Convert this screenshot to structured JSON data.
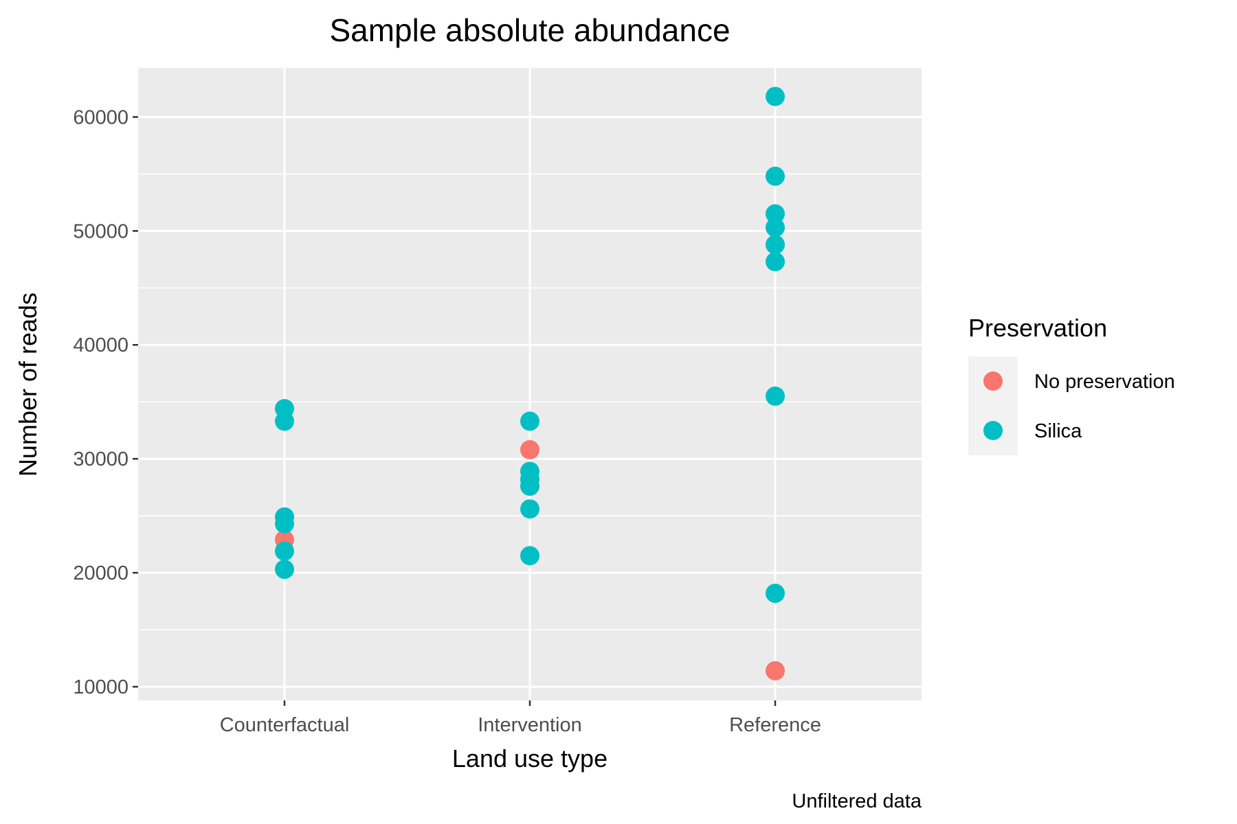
{
  "chart_data": {
    "type": "scatter",
    "title": "Sample absolute abundance",
    "xlabel": "Land use type",
    "ylabel": "Number of reads",
    "caption": "Unfiltered data",
    "categories": [
      "Counterfactual",
      "Intervention",
      "Reference"
    ],
    "ylim": [
      8800,
      64300
    ],
    "yticks": [
      10000,
      20000,
      30000,
      40000,
      50000,
      60000
    ],
    "yticklabels": [
      "10000",
      "20000",
      "30000",
      "40000",
      "50000",
      "60000"
    ],
    "grid": true,
    "legend": {
      "title": "Preservation",
      "placement": "right",
      "entries": [
        {
          "label": "No preservation",
          "color": "#F8766D"
        },
        {
          "label": "Silica",
          "color": "#00BFC4"
        }
      ]
    },
    "series": [
      {
        "name": "No preservation",
        "color": "#F8766D",
        "points": [
          {
            "x": "Counterfactual",
            "y": 22900
          },
          {
            "x": "Intervention",
            "y": 30800
          },
          {
            "x": "Reference",
            "y": 11400
          }
        ]
      },
      {
        "name": "Silica",
        "color": "#00BFC4",
        "points": [
          {
            "x": "Counterfactual",
            "y": 34400
          },
          {
            "x": "Counterfactual",
            "y": 33300
          },
          {
            "x": "Counterfactual",
            "y": 24900
          },
          {
            "x": "Counterfactual",
            "y": 24300
          },
          {
            "x": "Counterfactual",
            "y": 21900
          },
          {
            "x": "Counterfactual",
            "y": 20300
          },
          {
            "x": "Intervention",
            "y": 33300
          },
          {
            "x": "Intervention",
            "y": 28900
          },
          {
            "x": "Intervention",
            "y": 28200
          },
          {
            "x": "Intervention",
            "y": 27600
          },
          {
            "x": "Intervention",
            "y": 25600
          },
          {
            "x": "Intervention",
            "y": 21500
          },
          {
            "x": "Reference",
            "y": 61800
          },
          {
            "x": "Reference",
            "y": 54800
          },
          {
            "x": "Reference",
            "y": 51500
          },
          {
            "x": "Reference",
            "y": 50300
          },
          {
            "x": "Reference",
            "y": 48800
          },
          {
            "x": "Reference",
            "y": 47300
          },
          {
            "x": "Reference",
            "y": 35500
          },
          {
            "x": "Reference",
            "y": 18200
          }
        ]
      }
    ]
  }
}
